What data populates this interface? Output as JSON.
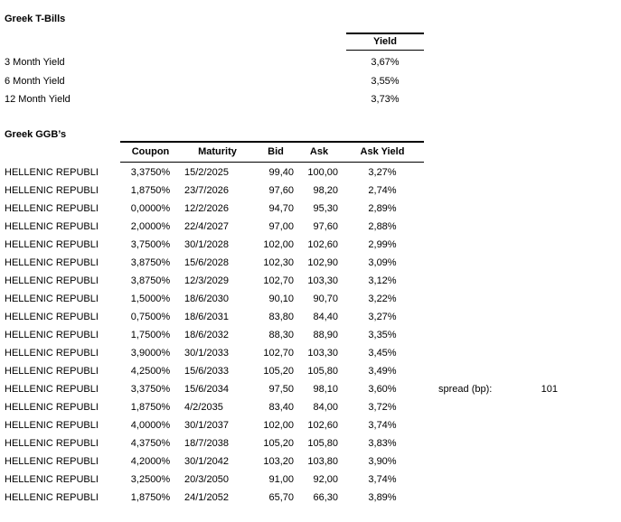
{
  "colors": {
    "background": "#ffffff",
    "text": "#000000",
    "border": "#000000"
  },
  "tbills": {
    "title": "Greek T-Bills",
    "yield_header": "Yield",
    "rows": [
      {
        "label": "3 Month Yield",
        "value": "3,67%"
      },
      {
        "label": "6 Month Yield",
        "value": "3,55%"
      },
      {
        "label": "12 Month Yield",
        "value": "3,73%"
      }
    ]
  },
  "ggb": {
    "title": "Greek GGB’s",
    "issuer": "HELLENIC REPUBLI",
    "columns": [
      "Coupon",
      "Maturity",
      "Bid",
      "Ask",
      "Ask Yield"
    ],
    "rows": [
      {
        "coupon": "3,3750%",
        "maturity": "15/2/2025",
        "bid": "99,40",
        "ask": "100,00",
        "ask_yield": "3,27%"
      },
      {
        "coupon": "1,8750%",
        "maturity": "23/7/2026",
        "bid": "97,60",
        "ask": "98,20",
        "ask_yield": "2,74%"
      },
      {
        "coupon": "0,0000%",
        "maturity": "12/2/2026",
        "bid": "94,70",
        "ask": "95,30",
        "ask_yield": "2,89%"
      },
      {
        "coupon": "2,0000%",
        "maturity": "22/4/2027",
        "bid": "97,00",
        "ask": "97,60",
        "ask_yield": "2,88%"
      },
      {
        "coupon": "3,7500%",
        "maturity": "30/1/2028",
        "bid": "102,00",
        "ask": "102,60",
        "ask_yield": "2,99%"
      },
      {
        "coupon": "3,8750%",
        "maturity": "15/6/2028",
        "bid": "102,30",
        "ask": "102,90",
        "ask_yield": "3,09%"
      },
      {
        "coupon": "3,8750%",
        "maturity": "12/3/2029",
        "bid": "102,70",
        "ask": "103,30",
        "ask_yield": "3,12%"
      },
      {
        "coupon": "1,5000%",
        "maturity": "18/6/2030",
        "bid": "90,10",
        "ask": "90,70",
        "ask_yield": "3,22%"
      },
      {
        "coupon": "0,7500%",
        "maturity": "18/6/2031",
        "bid": "83,80",
        "ask": "84,40",
        "ask_yield": "3,27%"
      },
      {
        "coupon": "1,7500%",
        "maturity": "18/6/2032",
        "bid": "88,30",
        "ask": "88,90",
        "ask_yield": "3,35%"
      },
      {
        "coupon": "3,9000%",
        "maturity": "30/1/2033",
        "bid": "102,70",
        "ask": "103,30",
        "ask_yield": "3,45%"
      },
      {
        "coupon": "4,2500%",
        "maturity": "15/6/2033",
        "bid": "105,20",
        "ask": "105,80",
        "ask_yield": "3,49%"
      },
      {
        "coupon": "3,3750%",
        "maturity": "15/6/2034",
        "bid": "97,50",
        "ask": "98,10",
        "ask_yield": "3,60%"
      },
      {
        "coupon": "1,8750%",
        "maturity": "4/2/2035",
        "bid": "83,40",
        "ask": "84,00",
        "ask_yield": "3,72%"
      },
      {
        "coupon": "4,0000%",
        "maturity": "30/1/2037",
        "bid": "102,00",
        "ask": "102,60",
        "ask_yield": "3,74%"
      },
      {
        "coupon": "4,3750%",
        "maturity": "18/7/2038",
        "bid": "105,20",
        "ask": "105,80",
        "ask_yield": "3,83%"
      },
      {
        "coupon": "4,2000%",
        "maturity": "30/1/2042",
        "bid": "103,20",
        "ask": "103,80",
        "ask_yield": "3,90%"
      },
      {
        "coupon": "3,2500%",
        "maturity": "20/3/2050",
        "bid": "91,00",
        "ask": "92,00",
        "ask_yield": "3,74%"
      },
      {
        "coupon": "1,8750%",
        "maturity": "24/1/2052",
        "bid": "65,70",
        "ask": "66,30",
        "ask_yield": "3,89%"
      }
    ]
  },
  "spread": {
    "label": "spread (bp):",
    "value": "101"
  }
}
